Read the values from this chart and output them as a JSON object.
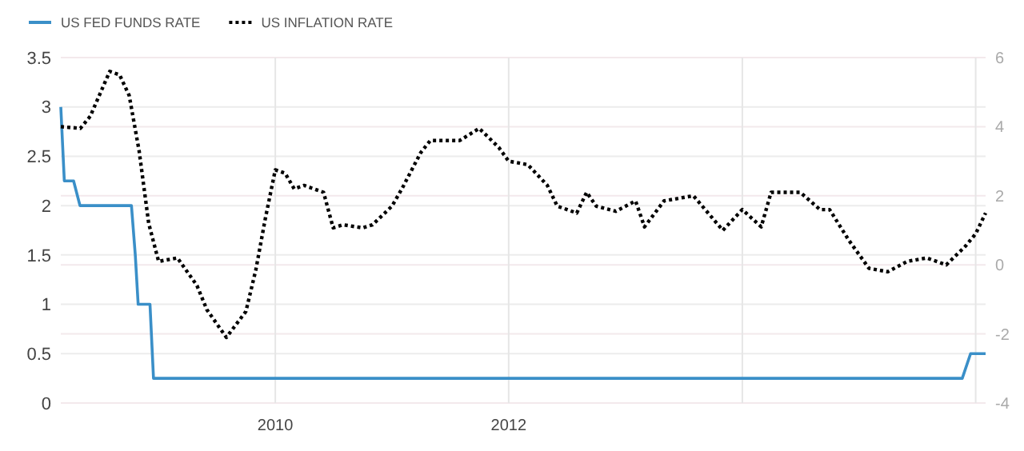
{
  "chart_data": {
    "type": "line",
    "xlim": [
      "2008-03",
      "2016-02"
    ],
    "xticks": [
      "2010",
      "2012",
      {
        "value": "2014",
        "label": null
      },
      {
        "value": "2016",
        "label": null
      }
    ],
    "ylim": [
      0,
      3.5
    ],
    "yticks": [
      0,
      0.5,
      1,
      1.5,
      2,
      2.5,
      3,
      3.5
    ],
    "y2lim": [
      -4,
      6
    ],
    "y2ticks": [
      -4,
      -2,
      0,
      2,
      4,
      6
    ],
    "grid": true,
    "legend": "top left",
    "series": [
      {
        "name": "US FED FUNDS RATE",
        "color": "#3a8fc8",
        "line_style": "solid",
        "x": [
          "2008-03-01",
          "2008-03-12",
          "2008-04-10",
          "2008-04-30",
          "2008-10-08",
          "2008-10-20",
          "2008-10-29",
          "2008-12-05",
          "2008-12-16",
          "2015-11-20",
          "2015-12-16",
          "2016-02-01"
        ],
        "values": [
          3,
          2.25,
          2.25,
          2,
          2,
          1.5,
          1,
          1,
          0.25,
          0.25,
          0.5,
          0.5
        ]
      },
      {
        "name": "US INFLATION RATE",
        "color": "#000000",
        "line_style": "dotted",
        "axis": "y2",
        "x": [
          "2008-03",
          "2008-05",
          "2008-06",
          "2008-08",
          "2008-09",
          "2008-10",
          "2008-11",
          "2008-12",
          "2009-01",
          "2009-03",
          "2009-05",
          "2009-06",
          "2009-08",
          "2009-10",
          "2009-11",
          "2009-12",
          "2010-01",
          "2010-02",
          "2010-03",
          "2010-04",
          "2010-06",
          "2010-07",
          "2010-08",
          "2010-10",
          "2010-11",
          "2011-01",
          "2011-02",
          "2011-04",
          "2011-05",
          "2011-08",
          "2011-10",
          "2011-12",
          "2012-01",
          "2012-03",
          "2012-05",
          "2012-06",
          "2012-08",
          "2012-09",
          "2012-10",
          "2012-12",
          "2013-02",
          "2013-03",
          "2013-05",
          "2013-08",
          "2013-11",
          "2014-01",
          "2014-03",
          "2014-04",
          "2014-07",
          "2014-09",
          "2014-10",
          "2014-12",
          "2015-02",
          "2015-04",
          "2015-06",
          "2015-08",
          "2015-10",
          "2015-12",
          "2016-01",
          "2016-02"
        ],
        "values": [
          4,
          3.95,
          4.3,
          5.6,
          5.5,
          4.9,
          3.3,
          1.2,
          0.1,
          0.2,
          -0.6,
          -1.3,
          -2.1,
          -1.35,
          -0.15,
          1.35,
          2.75,
          2.65,
          2.2,
          2.3,
          2.1,
          1.07,
          1.16,
          1.07,
          1.16,
          1.7,
          2.2,
          3.25,
          3.6,
          3.6,
          3.95,
          3.4,
          3,
          2.9,
          2.3,
          1.7,
          1.5,
          2.1,
          1.7,
          1.55,
          1.85,
          1.1,
          1.85,
          2,
          1,
          1.6,
          1.1,
          2.1,
          2.1,
          1.6,
          1.6,
          0.7,
          -0.1,
          -0.2,
          0.1,
          0.2,
          0,
          0.55,
          0.9,
          1.5
        ]
      }
    ]
  }
}
